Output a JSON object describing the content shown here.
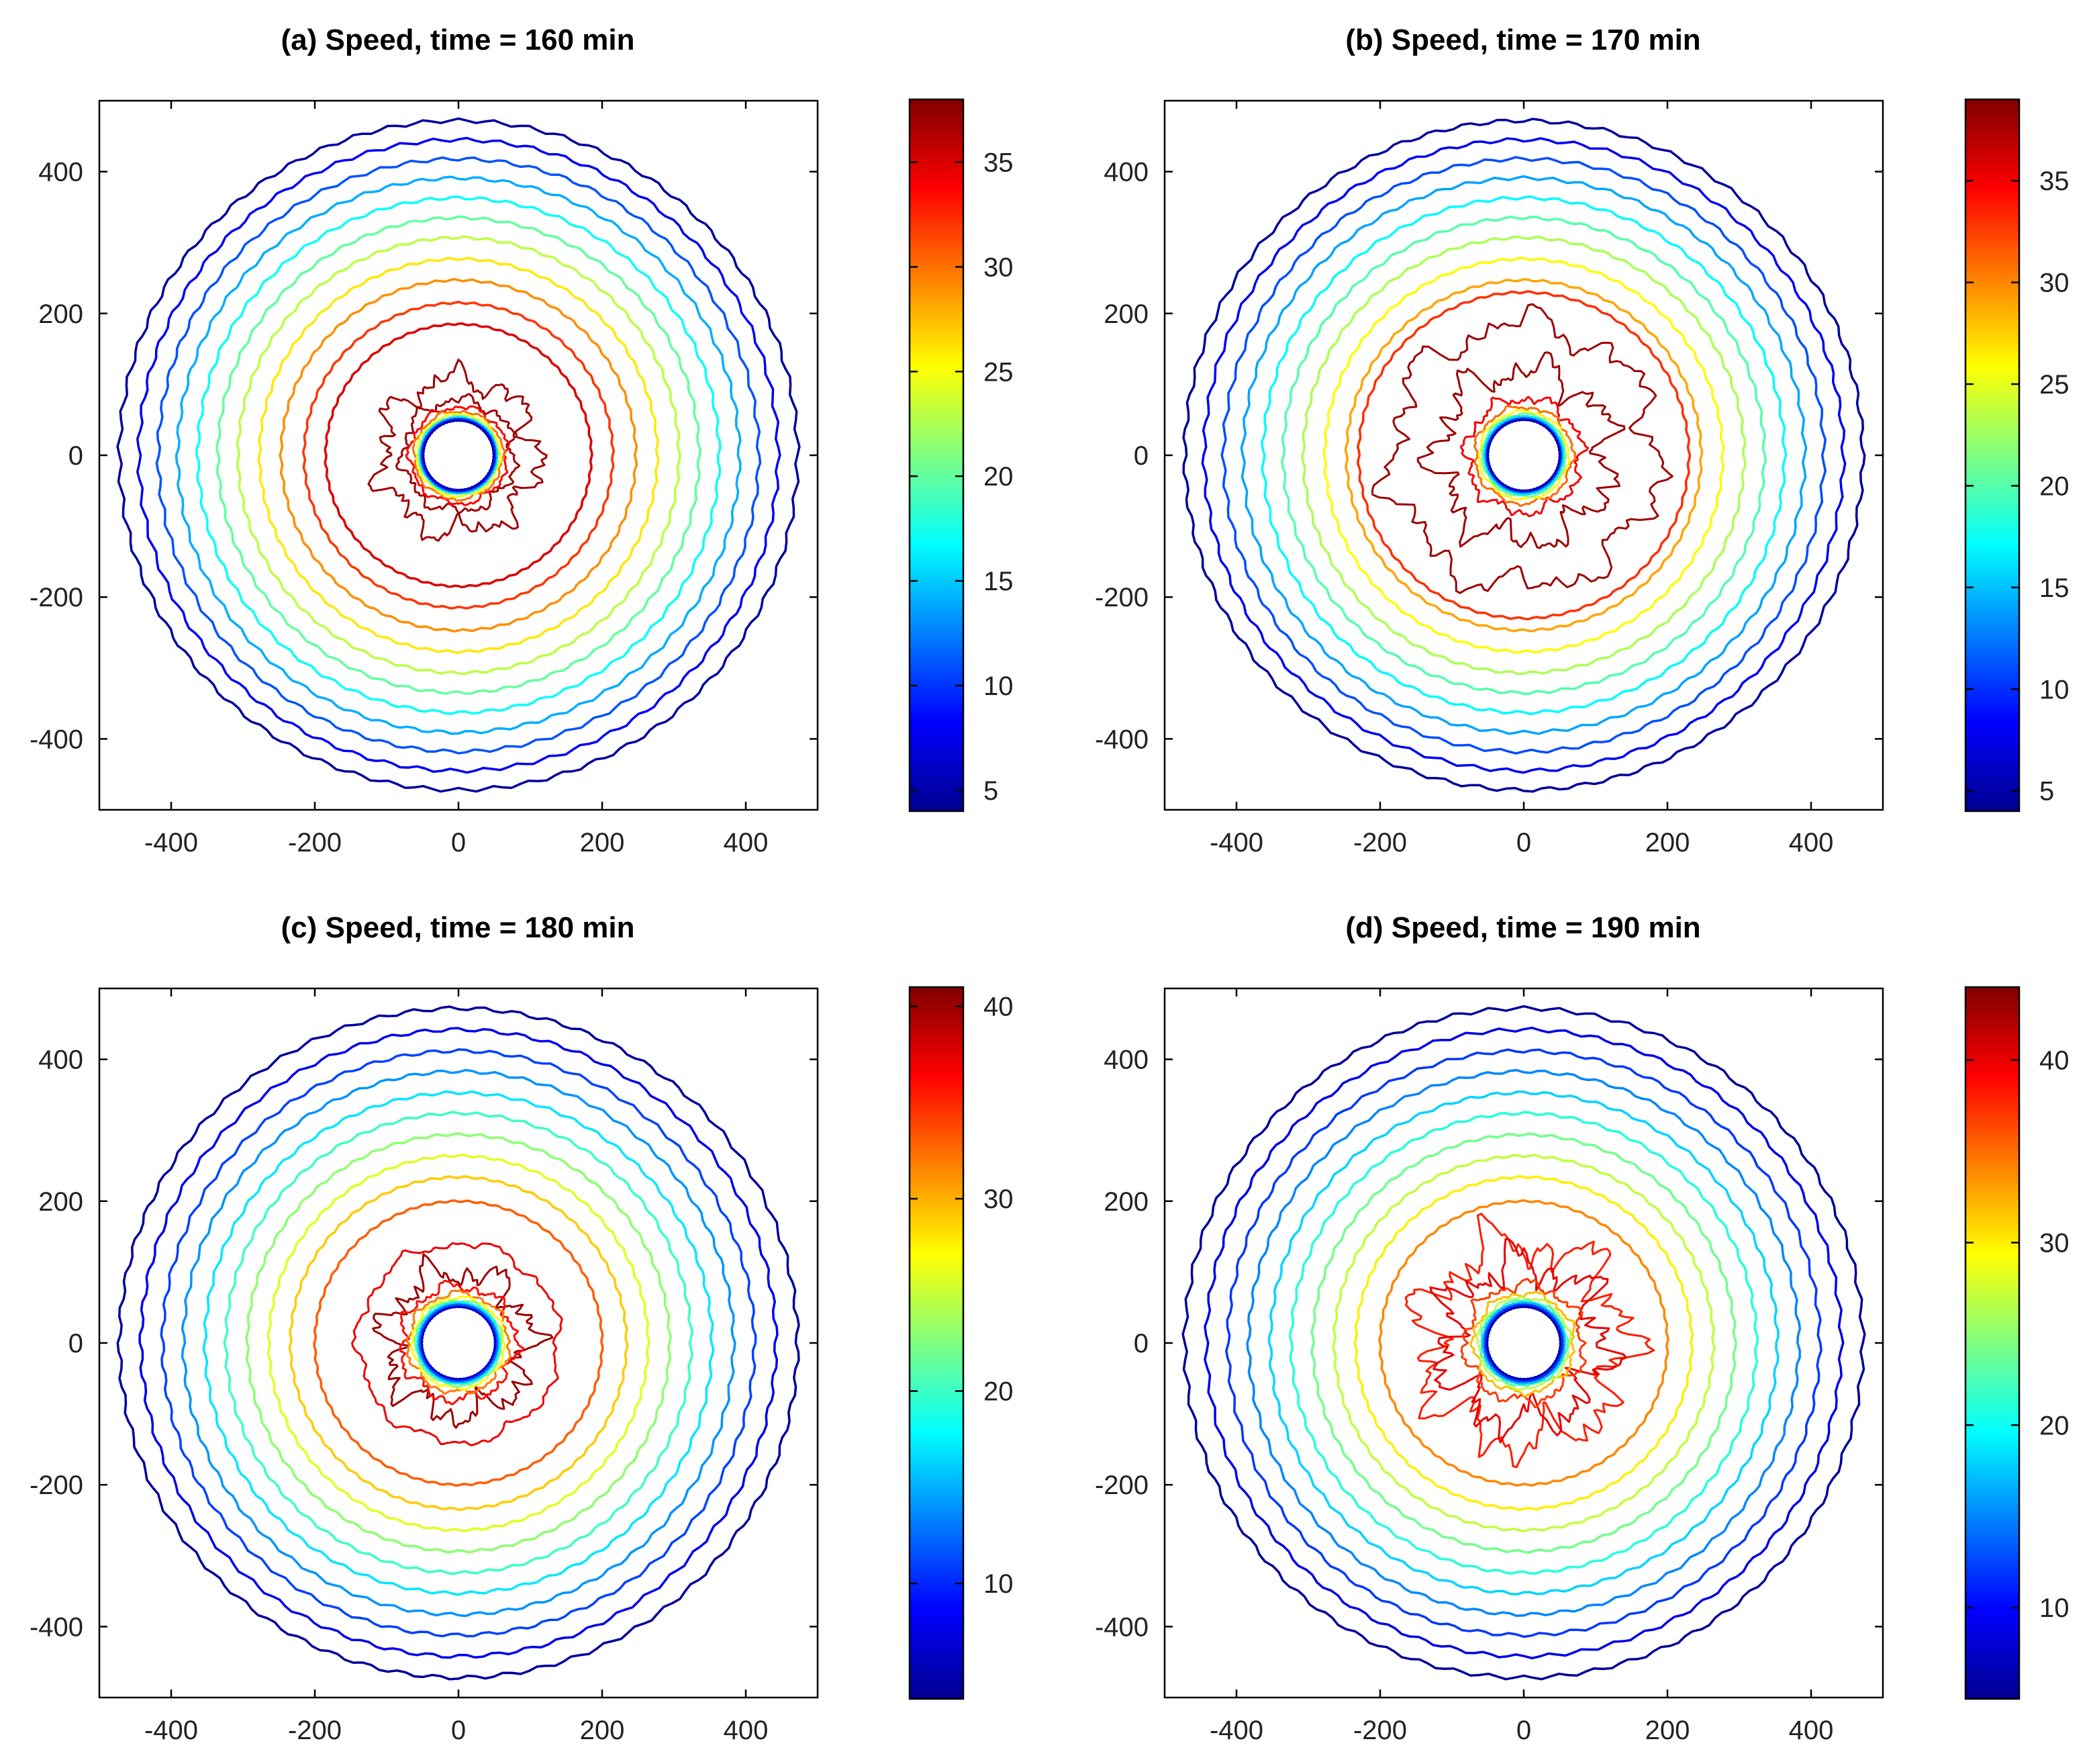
{
  "chart_data": [
    {
      "type": "contour",
      "panel": "a",
      "title": "(a) Speed, time = 160 min",
      "xlim": [
        -500,
        500
      ],
      "ylim": [
        -500,
        500
      ],
      "xticks": [
        -400,
        -200,
        0,
        200,
        400
      ],
      "yticks": [
        -400,
        -200,
        0,
        200,
        400
      ],
      "xtick_labels": [
        "-400",
        "-200",
        "0",
        "200",
        "400"
      ],
      "ytick_labels": [
        "-400",
        "-200",
        "0",
        "200",
        "400"
      ],
      "colorbar": {
        "range": [
          4,
          38
        ],
        "ticks": [
          5,
          10,
          15,
          20,
          25,
          30,
          35
        ],
        "tick_labels": [
          "5",
          "10",
          "15",
          "20",
          "25",
          "30",
          "35"
        ]
      },
      "contours": [
        {
          "level": 5,
          "radius": 472
        },
        {
          "level": 8,
          "radius": 445
        },
        {
          "level": 11,
          "radius": 418
        },
        {
          "level": 14,
          "radius": 391
        },
        {
          "level": 17,
          "radius": 363
        },
        {
          "level": 20,
          "radius": 335
        },
        {
          "level": 23,
          "radius": 307
        },
        {
          "level": 26,
          "radius": 277
        },
        {
          "level": 29,
          "radius": 247
        },
        {
          "level": 32,
          "radius": 215
        },
        {
          "level": 35,
          "radius": 185
        },
        {
          "level": 37,
          "radius": 108,
          "rough": 0.35
        },
        {
          "level": 37,
          "radius": 78,
          "rough": 0.2
        },
        {
          "level": 34,
          "radius": 68,
          "rough": 0.12
        },
        {
          "level": 30,
          "radius": 62,
          "rough": 0.08
        },
        {
          "level": 25,
          "radius": 58,
          "rough": 0.05
        },
        {
          "level": 20,
          "radius": 55,
          "rough": 0.03
        },
        {
          "level": 15,
          "radius": 53
        },
        {
          "level": 10,
          "radius": 51
        },
        {
          "level": 6,
          "radius": 49
        }
      ]
    },
    {
      "type": "contour",
      "panel": "b",
      "title": "(b) Speed, time = 170 min",
      "xlim": [
        -500,
        500
      ],
      "ylim": [
        -500,
        500
      ],
      "xticks": [
        -400,
        -200,
        0,
        200,
        400
      ],
      "yticks": [
        -400,
        -200,
        0,
        200,
        400
      ],
      "xtick_labels": [
        "-400",
        "-200",
        "0",
        "200",
        "400"
      ],
      "ytick_labels": [
        "-400",
        "-200",
        "0",
        "200",
        "400"
      ],
      "colorbar": {
        "range": [
          4,
          39
        ],
        "ticks": [
          5,
          10,
          15,
          20,
          25,
          30,
          35
        ],
        "tick_labels": [
          "5",
          "10",
          "15",
          "20",
          "25",
          "30",
          "35"
        ]
      },
      "contours": [
        {
          "level": 5,
          "radius": 472
        },
        {
          "level": 8,
          "radius": 445
        },
        {
          "level": 11,
          "radius": 418
        },
        {
          "level": 14,
          "radius": 391
        },
        {
          "level": 17,
          "radius": 363
        },
        {
          "level": 20,
          "radius": 335
        },
        {
          "level": 23,
          "radius": 307
        },
        {
          "level": 26,
          "radius": 277
        },
        {
          "level": 29,
          "radius": 247
        },
        {
          "level": 33,
          "radius": 230
        },
        {
          "level": 38,
          "radius": 185,
          "rough": 0.25
        },
        {
          "level": 38,
          "radius": 120,
          "rough": 0.4
        },
        {
          "level": 35,
          "radius": 80,
          "rough": 0.2
        },
        {
          "level": 31,
          "radius": 68,
          "rough": 0.1
        },
        {
          "level": 26,
          "radius": 62,
          "rough": 0.06
        },
        {
          "level": 21,
          "radius": 58,
          "rough": 0.04
        },
        {
          "level": 16,
          "radius": 55
        },
        {
          "level": 11,
          "radius": 52
        },
        {
          "level": 6,
          "radius": 50
        }
      ]
    },
    {
      "type": "contour",
      "panel": "c",
      "title": "(c) Speed, time = 180 min",
      "xlim": [
        -500,
        500
      ],
      "ylim": [
        -500,
        500
      ],
      "xticks": [
        -400,
        -200,
        0,
        200,
        400
      ],
      "yticks": [
        -400,
        -200,
        0,
        200,
        400
      ],
      "xtick_labels": [
        "-400",
        "-200",
        "0",
        "200",
        "400"
      ],
      "ytick_labels": [
        "-400",
        "-200",
        "0",
        "200",
        "400"
      ],
      "colorbar": {
        "range": [
          4,
          41
        ],
        "ticks": [
          10,
          20,
          30,
          40
        ],
        "tick_labels": [
          "10",
          "20",
          "30",
          "40"
        ]
      },
      "contours": [
        {
          "level": 5,
          "radius": 472
        },
        {
          "level": 8,
          "radius": 442
        },
        {
          "level": 11,
          "radius": 412
        },
        {
          "level": 14,
          "radius": 383
        },
        {
          "level": 17,
          "radius": 353
        },
        {
          "level": 20,
          "radius": 324
        },
        {
          "level": 23,
          "radius": 294
        },
        {
          "level": 26,
          "radius": 264
        },
        {
          "level": 29,
          "radius": 234
        },
        {
          "level": 33,
          "radius": 200
        },
        {
          "level": 37,
          "radius": 140,
          "rough": 0.1
        },
        {
          "level": 40,
          "radius": 100,
          "rough": 0.45
        },
        {
          "level": 36,
          "radius": 80,
          "rough": 0.2
        },
        {
          "level": 32,
          "radius": 70,
          "rough": 0.12
        },
        {
          "level": 27,
          "radius": 64,
          "rough": 0.07
        },
        {
          "level": 22,
          "radius": 60,
          "rough": 0.05
        },
        {
          "level": 17,
          "radius": 57
        },
        {
          "level": 12,
          "radius": 54
        },
        {
          "level": 7,
          "radius": 51
        }
      ]
    },
    {
      "type": "contour",
      "panel": "d",
      "title": "(d) Speed, time = 190 min",
      "xlim": [
        -500,
        500
      ],
      "ylim": [
        -500,
        500
      ],
      "xticks": [
        -400,
        -200,
        0,
        200,
        400
      ],
      "yticks": [
        -400,
        -200,
        0,
        200,
        400
      ],
      "xtick_labels": [
        "-400",
        "-200",
        "0",
        "200",
        "400"
      ],
      "ytick_labels": [
        "-400",
        "-200",
        "0",
        "200",
        "400"
      ],
      "colorbar": {
        "range": [
          5,
          44
        ],
        "ticks": [
          10,
          20,
          30,
          40
        ],
        "tick_labels": [
          "10",
          "20",
          "30",
          "40"
        ]
      },
      "contours": [
        {
          "level": 6,
          "radius": 472
        },
        {
          "level": 9,
          "radius": 442
        },
        {
          "level": 12,
          "radius": 412
        },
        {
          "level": 15,
          "radius": 383
        },
        {
          "level": 18,
          "radius": 353
        },
        {
          "level": 21,
          "radius": 324
        },
        {
          "level": 24,
          "radius": 294
        },
        {
          "level": 27,
          "radius": 264
        },
        {
          "level": 30,
          "radius": 234
        },
        {
          "level": 34,
          "radius": 200
        },
        {
          "level": 38,
          "radius": 140,
          "rough": 0.5
        },
        {
          "level": 40,
          "radius": 110,
          "rough": 0.55
        },
        {
          "level": 37,
          "radius": 82,
          "rough": 0.2
        },
        {
          "level": 32,
          "radius": 70,
          "rough": 0.12
        },
        {
          "level": 27,
          "radius": 64,
          "rough": 0.07
        },
        {
          "level": 22,
          "radius": 60,
          "rough": 0.05
        },
        {
          "level": 17,
          "radius": 57
        },
        {
          "level": 12,
          "radius": 54
        },
        {
          "level": 7,
          "radius": 51
        }
      ]
    }
  ]
}
